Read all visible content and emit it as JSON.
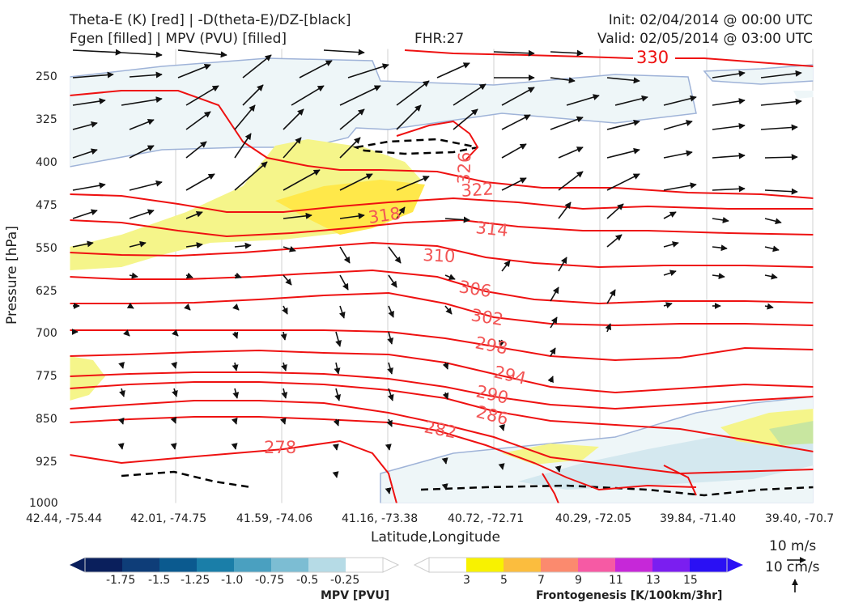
{
  "header": {
    "line1_left": "Theta-E (K) [red] | -D(theta-E)/DZ-[black]",
    "line2_left": "Fgen [filled] | MPV (PVU) [filled]",
    "fhr": "FHR:27",
    "init": "Init: 02/04/2014 @ 00:00 UTC",
    "valid": "Valid: 02/05/2014 @ 03:00 UTC"
  },
  "axes": {
    "ylabel": "Pressure [hPa]",
    "xlabel": "Latitude,Longitude",
    "yticks": [
      "250",
      "325",
      "400",
      "475",
      "550",
      "625",
      "700",
      "775",
      "850",
      "925",
      "1000"
    ],
    "xticks": [
      "42.44, -75.44",
      "42.01, -74.75",
      "41.59, -74.06",
      "41.16, -73.38",
      "40.72, -72.71",
      "40.29, -72.05",
      "39.84, -71.40",
      "39.40, -70.7"
    ]
  },
  "chart_data": {
    "type": "contour cross-section",
    "ylim": [
      1000,
      200
    ],
    "y_scale": "reversed",
    "theta_e_contour_labels": [
      "330",
      "326",
      "322",
      "318",
      "314",
      "310",
      "306",
      "302",
      "298",
      "294",
      "290",
      "286",
      "282",
      "278"
    ],
    "colors": {
      "theta_e": "#ee1111",
      "dtheta_dz": "#000000",
      "fgen_low": "#f5f58a",
      "fgen_mid": "#ffe84a",
      "mpv_light": "#eef6f8",
      "mpv_mid": "#d4e8ef"
    }
  },
  "reference_vectors": {
    "top": "10 m/s",
    "bottom": "10 cm/s"
  },
  "colorbars": {
    "mpv": {
      "title": "MPV [PVU]",
      "ticks": [
        "-1.75",
        "-1.5",
        "-1.25",
        "-1.0",
        "-0.75",
        "-0.5",
        "-0.25"
      ],
      "colors": [
        "#0a1f5c",
        "#0e3d78",
        "#0b5a8f",
        "#1a7ea8",
        "#4aa0c0",
        "#7cbdd3",
        "#b6dbe6",
        "#ffffff"
      ]
    },
    "fgen": {
      "title": "Frontogenesis [K/100km/3hr]",
      "ticks": [
        "3",
        "5",
        "7",
        "9",
        "11",
        "13",
        "15"
      ],
      "colors": [
        "#ffffff",
        "#f8f200",
        "#fbbd3e",
        "#fb8a6e",
        "#f65aa4",
        "#c628d8",
        "#7b1ef0",
        "#2a10f4"
      ]
    }
  }
}
